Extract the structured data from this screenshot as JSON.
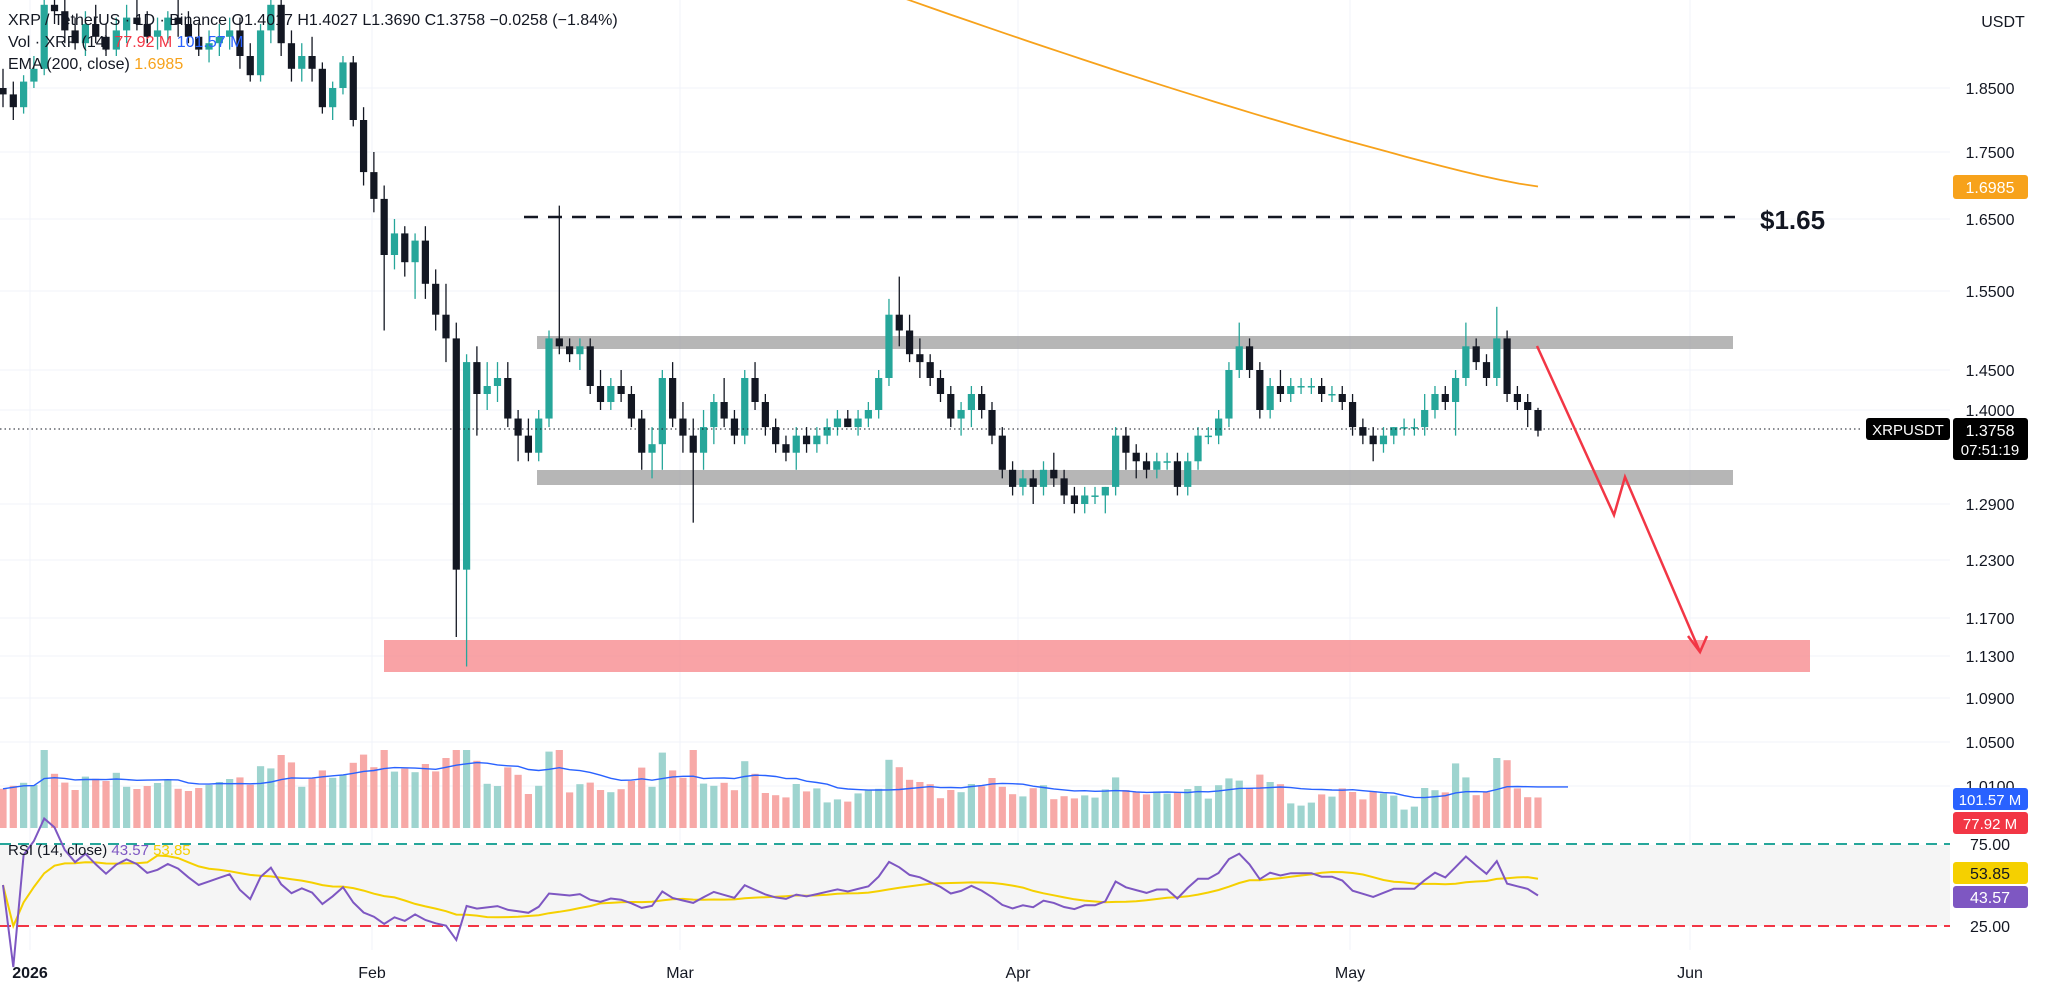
{
  "legend": {
    "symbol": "XRP / TetherUS · 1D · Binance",
    "open": "O1.4017",
    "high": "H1.4027",
    "low": "L1.3690",
    "close": "C1.3758",
    "change": "−0.0258 (−1.84%)",
    "vol_label": "Vol · XRP (14)",
    "vol_value": "77.92 M",
    "vol_ma_value": "101.57 M",
    "ema_label": "EMA (200, close)",
    "ema_value": "1.6985"
  },
  "rsi_legend": {
    "label": "RSI (14, close)",
    "rsi_value": "43.57",
    "ma_value": "53.85"
  },
  "currency": "USDT",
  "annotations": {
    "target_label": "$1.65"
  },
  "price_tag": {
    "symbol": "XRPUSDT",
    "price": "1.3758",
    "countdown": "07:51:19"
  },
  "badges": {
    "ema": "1.6985",
    "vol_ma": "101.57 M",
    "vol": "77.92 M",
    "rsi_ma": "53.85",
    "rsi": "43.57"
  },
  "colors": {
    "up": "#26a69a",
    "down": "#131722",
    "ema": "#f7a21b",
    "vol_up": "#9ed4cf",
    "vol_down": "#f7a9a7",
    "vol_ma": "#2962ff",
    "rsi": "#7e57c2",
    "rsi_ma": "#f5d000",
    "resistance_zone": "#9e9e9e",
    "target_zone": "#f77c80",
    "arrow": "#f23645"
  },
  "chart_data": {
    "type": "candlestick",
    "title": "XRP / TetherUS · 1D · Binance",
    "y_axis_ticks": [
      "1.8500",
      "1.7500",
      "1.6500",
      "1.5500",
      "1.4500",
      "1.4000",
      "1.2900",
      "1.2300",
      "1.1700",
      "1.1300",
      "1.0900",
      "1.0500",
      "1.0100"
    ],
    "x_axis_labels": [
      "2026",
      "Feb",
      "Mar",
      "Apr",
      "May",
      "Jun"
    ],
    "ohlc": [
      [
        1.85,
        1.88,
        1.82,
        1.84
      ],
      [
        1.84,
        1.86,
        1.8,
        1.82
      ],
      [
        1.82,
        1.87,
        1.81,
        1.86
      ],
      [
        1.86,
        1.9,
        1.85,
        1.88
      ],
      [
        1.88,
        1.99,
        1.87,
        1.98
      ],
      [
        1.98,
        2.01,
        1.95,
        1.97
      ],
      [
        1.97,
        1.99,
        1.92,
        1.94
      ],
      [
        1.94,
        1.96,
        1.91,
        1.92
      ],
      [
        1.92,
        1.97,
        1.9,
        1.95
      ],
      [
        1.95,
        1.98,
        1.92,
        1.93
      ],
      [
        1.93,
        1.95,
        1.9,
        1.91
      ],
      [
        1.91,
        1.96,
        1.9,
        1.94
      ],
      [
        1.94,
        1.98,
        1.92,
        1.96
      ],
      [
        1.96,
        1.99,
        1.94,
        1.95
      ],
      [
        1.95,
        1.97,
        1.92,
        1.93
      ],
      [
        1.93,
        1.96,
        1.91,
        1.94
      ],
      [
        1.94,
        1.97,
        1.92,
        1.96
      ],
      [
        1.96,
        1.99,
        1.93,
        1.95
      ],
      [
        1.95,
        1.97,
        1.92,
        1.93
      ],
      [
        1.93,
        1.95,
        1.9,
        1.91
      ],
      [
        1.91,
        1.94,
        1.89,
        1.92
      ],
      [
        1.92,
        1.95,
        1.9,
        1.93
      ],
      [
        1.93,
        1.96,
        1.91,
        1.94
      ],
      [
        1.94,
        1.96,
        1.88,
        1.9
      ],
      [
        1.9,
        1.92,
        1.86,
        1.87
      ],
      [
        1.87,
        1.95,
        1.86,
        1.94
      ],
      [
        1.94,
        2.0,
        1.92,
        1.98
      ],
      [
        1.98,
        2.0,
        1.9,
        1.92
      ],
      [
        1.92,
        1.94,
        1.86,
        1.88
      ],
      [
        1.88,
        1.92,
        1.86,
        1.9
      ],
      [
        1.9,
        1.93,
        1.86,
        1.88
      ],
      [
        1.88,
        1.89,
        1.81,
        1.82
      ],
      [
        1.82,
        1.86,
        1.8,
        1.85
      ],
      [
        1.85,
        1.9,
        1.84,
        1.89
      ],
      [
        1.89,
        1.9,
        1.79,
        1.8
      ],
      [
        1.8,
        1.82,
        1.7,
        1.72
      ],
      [
        1.72,
        1.75,
        1.66,
        1.68
      ],
      [
        1.68,
        1.7,
        1.5,
        1.6
      ],
      [
        1.6,
        1.65,
        1.58,
        1.63
      ],
      [
        1.63,
        1.64,
        1.57,
        1.59
      ],
      [
        1.59,
        1.63,
        1.54,
        1.62
      ],
      [
        1.62,
        1.64,
        1.54,
        1.56
      ],
      [
        1.56,
        1.58,
        1.5,
        1.52
      ],
      [
        1.52,
        1.56,
        1.46,
        1.49
      ],
      [
        1.49,
        1.51,
        1.15,
        1.22
      ],
      [
        1.22,
        1.47,
        1.12,
        1.46
      ],
      [
        1.46,
        1.48,
        1.37,
        1.42
      ],
      [
        1.42,
        1.46,
        1.4,
        1.43
      ],
      [
        1.43,
        1.46,
        1.41,
        1.44
      ],
      [
        1.44,
        1.46,
        1.38,
        1.39
      ],
      [
        1.39,
        1.4,
        1.34,
        1.37
      ],
      [
        1.37,
        1.39,
        1.34,
        1.35
      ],
      [
        1.35,
        1.4,
        1.34,
        1.39
      ],
      [
        1.39,
        1.5,
        1.38,
        1.49
      ],
      [
        1.49,
        1.67,
        1.47,
        1.48
      ],
      [
        1.48,
        1.49,
        1.46,
        1.47
      ],
      [
        1.47,
        1.49,
        1.45,
        1.48
      ],
      [
        1.48,
        1.49,
        1.42,
        1.43
      ],
      [
        1.43,
        1.45,
        1.4,
        1.41
      ],
      [
        1.41,
        1.44,
        1.4,
        1.43
      ],
      [
        1.43,
        1.45,
        1.41,
        1.42
      ],
      [
        1.42,
        1.43,
        1.38,
        1.39
      ],
      [
        1.39,
        1.4,
        1.33,
        1.35
      ],
      [
        1.35,
        1.38,
        1.32,
        1.36
      ],
      [
        1.36,
        1.45,
        1.33,
        1.44
      ],
      [
        1.44,
        1.46,
        1.38,
        1.39
      ],
      [
        1.39,
        1.41,
        1.35,
        1.37
      ],
      [
        1.37,
        1.39,
        1.27,
        1.35
      ],
      [
        1.35,
        1.4,
        1.33,
        1.38
      ],
      [
        1.38,
        1.42,
        1.36,
        1.41
      ],
      [
        1.41,
        1.44,
        1.38,
        1.39
      ],
      [
        1.39,
        1.4,
        1.36,
        1.37
      ],
      [
        1.37,
        1.45,
        1.36,
        1.44
      ],
      [
        1.44,
        1.46,
        1.4,
        1.41
      ],
      [
        1.41,
        1.42,
        1.37,
        1.38
      ],
      [
        1.38,
        1.39,
        1.35,
        1.36
      ],
      [
        1.36,
        1.37,
        1.34,
        1.35
      ],
      [
        1.35,
        1.38,
        1.33,
        1.37
      ],
      [
        1.37,
        1.38,
        1.35,
        1.36
      ],
      [
        1.36,
        1.38,
        1.35,
        1.37
      ],
      [
        1.37,
        1.39,
        1.36,
        1.38
      ],
      [
        1.38,
        1.4,
        1.37,
        1.39
      ],
      [
        1.39,
        1.4,
        1.38,
        1.38
      ],
      [
        1.38,
        1.4,
        1.37,
        1.39
      ],
      [
        1.39,
        1.41,
        1.38,
        1.4
      ],
      [
        1.4,
        1.45,
        1.39,
        1.44
      ],
      [
        1.44,
        1.54,
        1.43,
        1.52
      ],
      [
        1.52,
        1.57,
        1.48,
        1.5
      ],
      [
        1.5,
        1.52,
        1.46,
        1.47
      ],
      [
        1.47,
        1.49,
        1.44,
        1.46
      ],
      [
        1.46,
        1.47,
        1.43,
        1.44
      ],
      [
        1.44,
        1.45,
        1.41,
        1.42
      ],
      [
        1.42,
        1.43,
        1.38,
        1.39
      ],
      [
        1.39,
        1.41,
        1.37,
        1.4
      ],
      [
        1.4,
        1.43,
        1.38,
        1.42
      ],
      [
        1.42,
        1.43,
        1.39,
        1.4
      ],
      [
        1.4,
        1.41,
        1.36,
        1.37
      ],
      [
        1.37,
        1.38,
        1.32,
        1.33
      ],
      [
        1.33,
        1.34,
        1.3,
        1.31
      ],
      [
        1.31,
        1.33,
        1.3,
        1.32
      ],
      [
        1.32,
        1.33,
        1.29,
        1.31
      ],
      [
        1.31,
        1.34,
        1.3,
        1.33
      ],
      [
        1.33,
        1.35,
        1.31,
        1.32
      ],
      [
        1.32,
        1.33,
        1.29,
        1.3
      ],
      [
        1.3,
        1.31,
        1.28,
        1.29
      ],
      [
        1.29,
        1.31,
        1.28,
        1.3
      ],
      [
        1.3,
        1.31,
        1.29,
        1.3
      ],
      [
        1.3,
        1.31,
        1.28,
        1.31
      ],
      [
        1.31,
        1.38,
        1.3,
        1.37
      ],
      [
        1.37,
        1.38,
        1.33,
        1.35
      ],
      [
        1.35,
        1.36,
        1.32,
        1.34
      ],
      [
        1.34,
        1.35,
        1.32,
        1.33
      ],
      [
        1.33,
        1.35,
        1.32,
        1.34
      ],
      [
        1.34,
        1.35,
        1.33,
        1.34
      ],
      [
        1.34,
        1.35,
        1.3,
        1.31
      ],
      [
        1.31,
        1.35,
        1.3,
        1.34
      ],
      [
        1.34,
        1.38,
        1.33,
        1.37
      ],
      [
        1.37,
        1.38,
        1.36,
        1.37
      ],
      [
        1.37,
        1.4,
        1.36,
        1.39
      ],
      [
        1.39,
        1.46,
        1.38,
        1.45
      ],
      [
        1.45,
        1.51,
        1.44,
        1.48
      ],
      [
        1.48,
        1.49,
        1.44,
        1.45
      ],
      [
        1.45,
        1.46,
        1.39,
        1.4
      ],
      [
        1.4,
        1.44,
        1.39,
        1.43
      ],
      [
        1.43,
        1.45,
        1.41,
        1.42
      ],
      [
        1.42,
        1.44,
        1.41,
        1.43
      ],
      [
        1.43,
        1.44,
        1.42,
        1.43
      ],
      [
        1.43,
        1.44,
        1.42,
        1.43
      ],
      [
        1.43,
        1.44,
        1.41,
        1.42
      ],
      [
        1.42,
        1.43,
        1.41,
        1.42
      ],
      [
        1.42,
        1.43,
        1.4,
        1.41
      ],
      [
        1.41,
        1.42,
        1.37,
        1.38
      ],
      [
        1.38,
        1.39,
        1.36,
        1.37
      ],
      [
        1.37,
        1.38,
        1.34,
        1.36
      ],
      [
        1.36,
        1.38,
        1.35,
        1.37
      ],
      [
        1.37,
        1.38,
        1.36,
        1.38
      ],
      [
        1.38,
        1.39,
        1.37,
        1.38
      ],
      [
        1.38,
        1.39,
        1.37,
        1.38
      ],
      [
        1.38,
        1.42,
        1.37,
        1.4
      ],
      [
        1.4,
        1.43,
        1.39,
        1.42
      ],
      [
        1.42,
        1.43,
        1.4,
        1.41
      ],
      [
        1.41,
        1.45,
        1.37,
        1.44
      ],
      [
        1.44,
        1.51,
        1.43,
        1.48
      ],
      [
        1.48,
        1.49,
        1.45,
        1.46
      ],
      [
        1.46,
        1.47,
        1.43,
        1.44
      ],
      [
        1.44,
        1.53,
        1.43,
        1.49
      ],
      [
        1.49,
        1.5,
        1.41,
        1.42
      ],
      [
        1.42,
        1.43,
        1.4,
        1.41
      ],
      [
        1.41,
        1.42,
        1.38,
        1.4
      ],
      [
        1.4,
        1.4027,
        1.369,
        1.3758
      ]
    ],
    "ema_200": {
      "start": 2.06,
      "end": 1.6985
    },
    "volume_ma_last": "101.57 M",
    "volume_last": "77.92 M",
    "rsi_levels": [
      75,
      25
    ],
    "rsi_last": 43.57,
    "rsi_ma_last": 53.85,
    "zones": [
      {
        "label": "resistance",
        "low": 1.48,
        "high": 1.5
      },
      {
        "label": "support",
        "low": 1.3,
        "high": 1.32
      },
      {
        "label": "target",
        "low": 1.12,
        "high": 1.16
      }
    ],
    "target_line": 1.65
  }
}
